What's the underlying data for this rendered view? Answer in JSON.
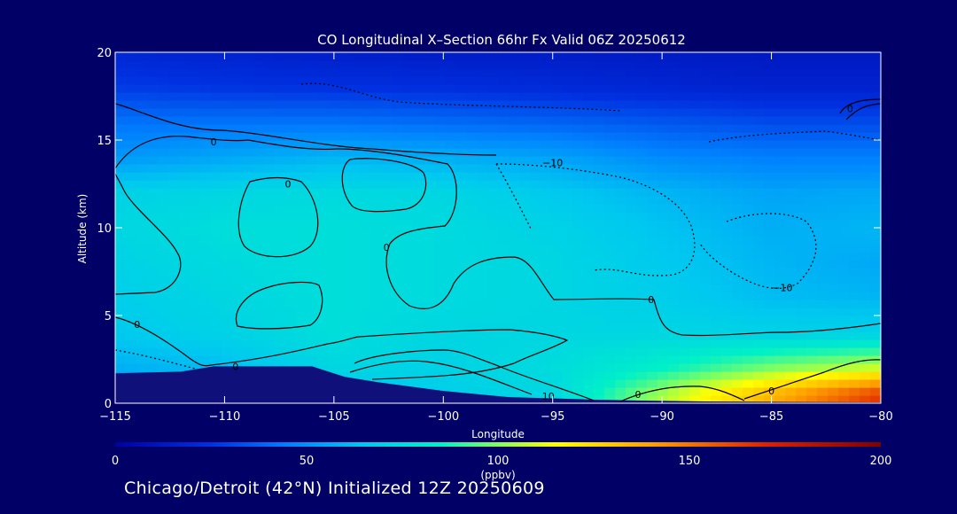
{
  "title": "CO Longitudinal X–Section 66hr  Fx Valid 06Z 20250612",
  "footer_text": "Chicago/Detroit (42°N) Initialized 12Z 20250609",
  "colors": {
    "background": "#000066",
    "axis": "#ffffff",
    "contour": "#000000",
    "terrain": "#10107a"
  },
  "chart_data": {
    "type": "heatmap",
    "title": "CO Longitudinal X–Section 66hr  Fx Valid 06Z 20250612",
    "xlabel": "Longitude",
    "ylabel": "Altitude (km)",
    "xlim": [
      -115,
      -80
    ],
    "ylim": [
      0,
      20
    ],
    "x_ticks": [
      -115,
      -110,
      -105,
      -100,
      -95,
      -90,
      -85,
      -80
    ],
    "x_tick_labels": [
      "−115",
      "−110",
      "−105",
      "−100",
      "−95",
      "−90",
      "−85",
      "−80"
    ],
    "y_ticks": [
      0,
      5,
      10,
      15,
      20
    ],
    "y_tick_labels": [
      "0",
      "5",
      "10",
      "15",
      "20"
    ],
    "colorbar": {
      "min": 0,
      "max": 200,
      "unit": "(ppbv)",
      "ticks": [
        0,
        50,
        100,
        150,
        200
      ],
      "tick_labels": [
        "0",
        "50",
        "100",
        "150",
        "200"
      ],
      "stops": [
        {
          "v": 0,
          "c": "#0000a0"
        },
        {
          "v": 25,
          "c": "#0030e0"
        },
        {
          "v": 45,
          "c": "#0080ff"
        },
        {
          "v": 65,
          "c": "#00c8f0"
        },
        {
          "v": 85,
          "c": "#00f0c8"
        },
        {
          "v": 100,
          "c": "#80ff60"
        },
        {
          "v": 115,
          "c": "#ffff00"
        },
        {
          "v": 140,
          "c": "#ffa000"
        },
        {
          "v": 170,
          "c": "#e02000"
        },
        {
          "v": 200,
          "c": "#800000"
        }
      ]
    },
    "field": {
      "x": [
        -115,
        -110,
        -105,
        -100,
        -95,
        -90,
        -85,
        -80
      ],
      "y": [
        0.5,
        2,
        4,
        6,
        8,
        10,
        12,
        14,
        16,
        18,
        20
      ],
      "values": [
        [
          45,
          48,
          62,
          68,
          72,
          105,
          135,
          165
        ],
        [
          58,
          62,
          72,
          70,
          75,
          85,
          100,
          110
        ],
        [
          66,
          70,
          76,
          72,
          72,
          72,
          70,
          70
        ],
        [
          68,
          72,
          76,
          74,
          72,
          68,
          62,
          60
        ],
        [
          70,
          74,
          76,
          74,
          72,
          66,
          60,
          56
        ],
        [
          72,
          76,
          76,
          74,
          70,
          64,
          58,
          60
        ],
        [
          70,
          72,
          74,
          72,
          66,
          60,
          55,
          56
        ],
        [
          52,
          56,
          60,
          58,
          55,
          48,
          45,
          45
        ],
        [
          42,
          42,
          42,
          40,
          38,
          35,
          32,
          32
        ],
        [
          28,
          26,
          25,
          24,
          22,
          20,
          18,
          18
        ],
        [
          20,
          18,
          16,
          15,
          15,
          14,
          13,
          13
        ]
      ]
    },
    "contour_labels": [
      {
        "text": "0",
        "x": -110.5,
        "y": 14.9
      },
      {
        "text": "0",
        "x": -107.1,
        "y": 12.5
      },
      {
        "text": "0",
        "x": -102.6,
        "y": 8.9
      },
      {
        "text": "0",
        "x": -114,
        "y": 4.5
      },
      {
        "text": "0",
        "x": -109.5,
        "y": 2.1
      },
      {
        "text": "0",
        "x": -90.5,
        "y": 5.9
      },
      {
        "text": "0",
        "x": -91.1,
        "y": 0.5
      },
      {
        "text": "0",
        "x": -85,
        "y": 0.7
      },
      {
        "text": "0",
        "x": -81.4,
        "y": 16.8
      },
      {
        "text": "−10",
        "x": -95,
        "y": 13.7
      },
      {
        "text": "−10",
        "x": -84.5,
        "y": 6.6
      },
      {
        "text": "10",
        "x": -95.2,
        "y": 0.4
      }
    ]
  }
}
